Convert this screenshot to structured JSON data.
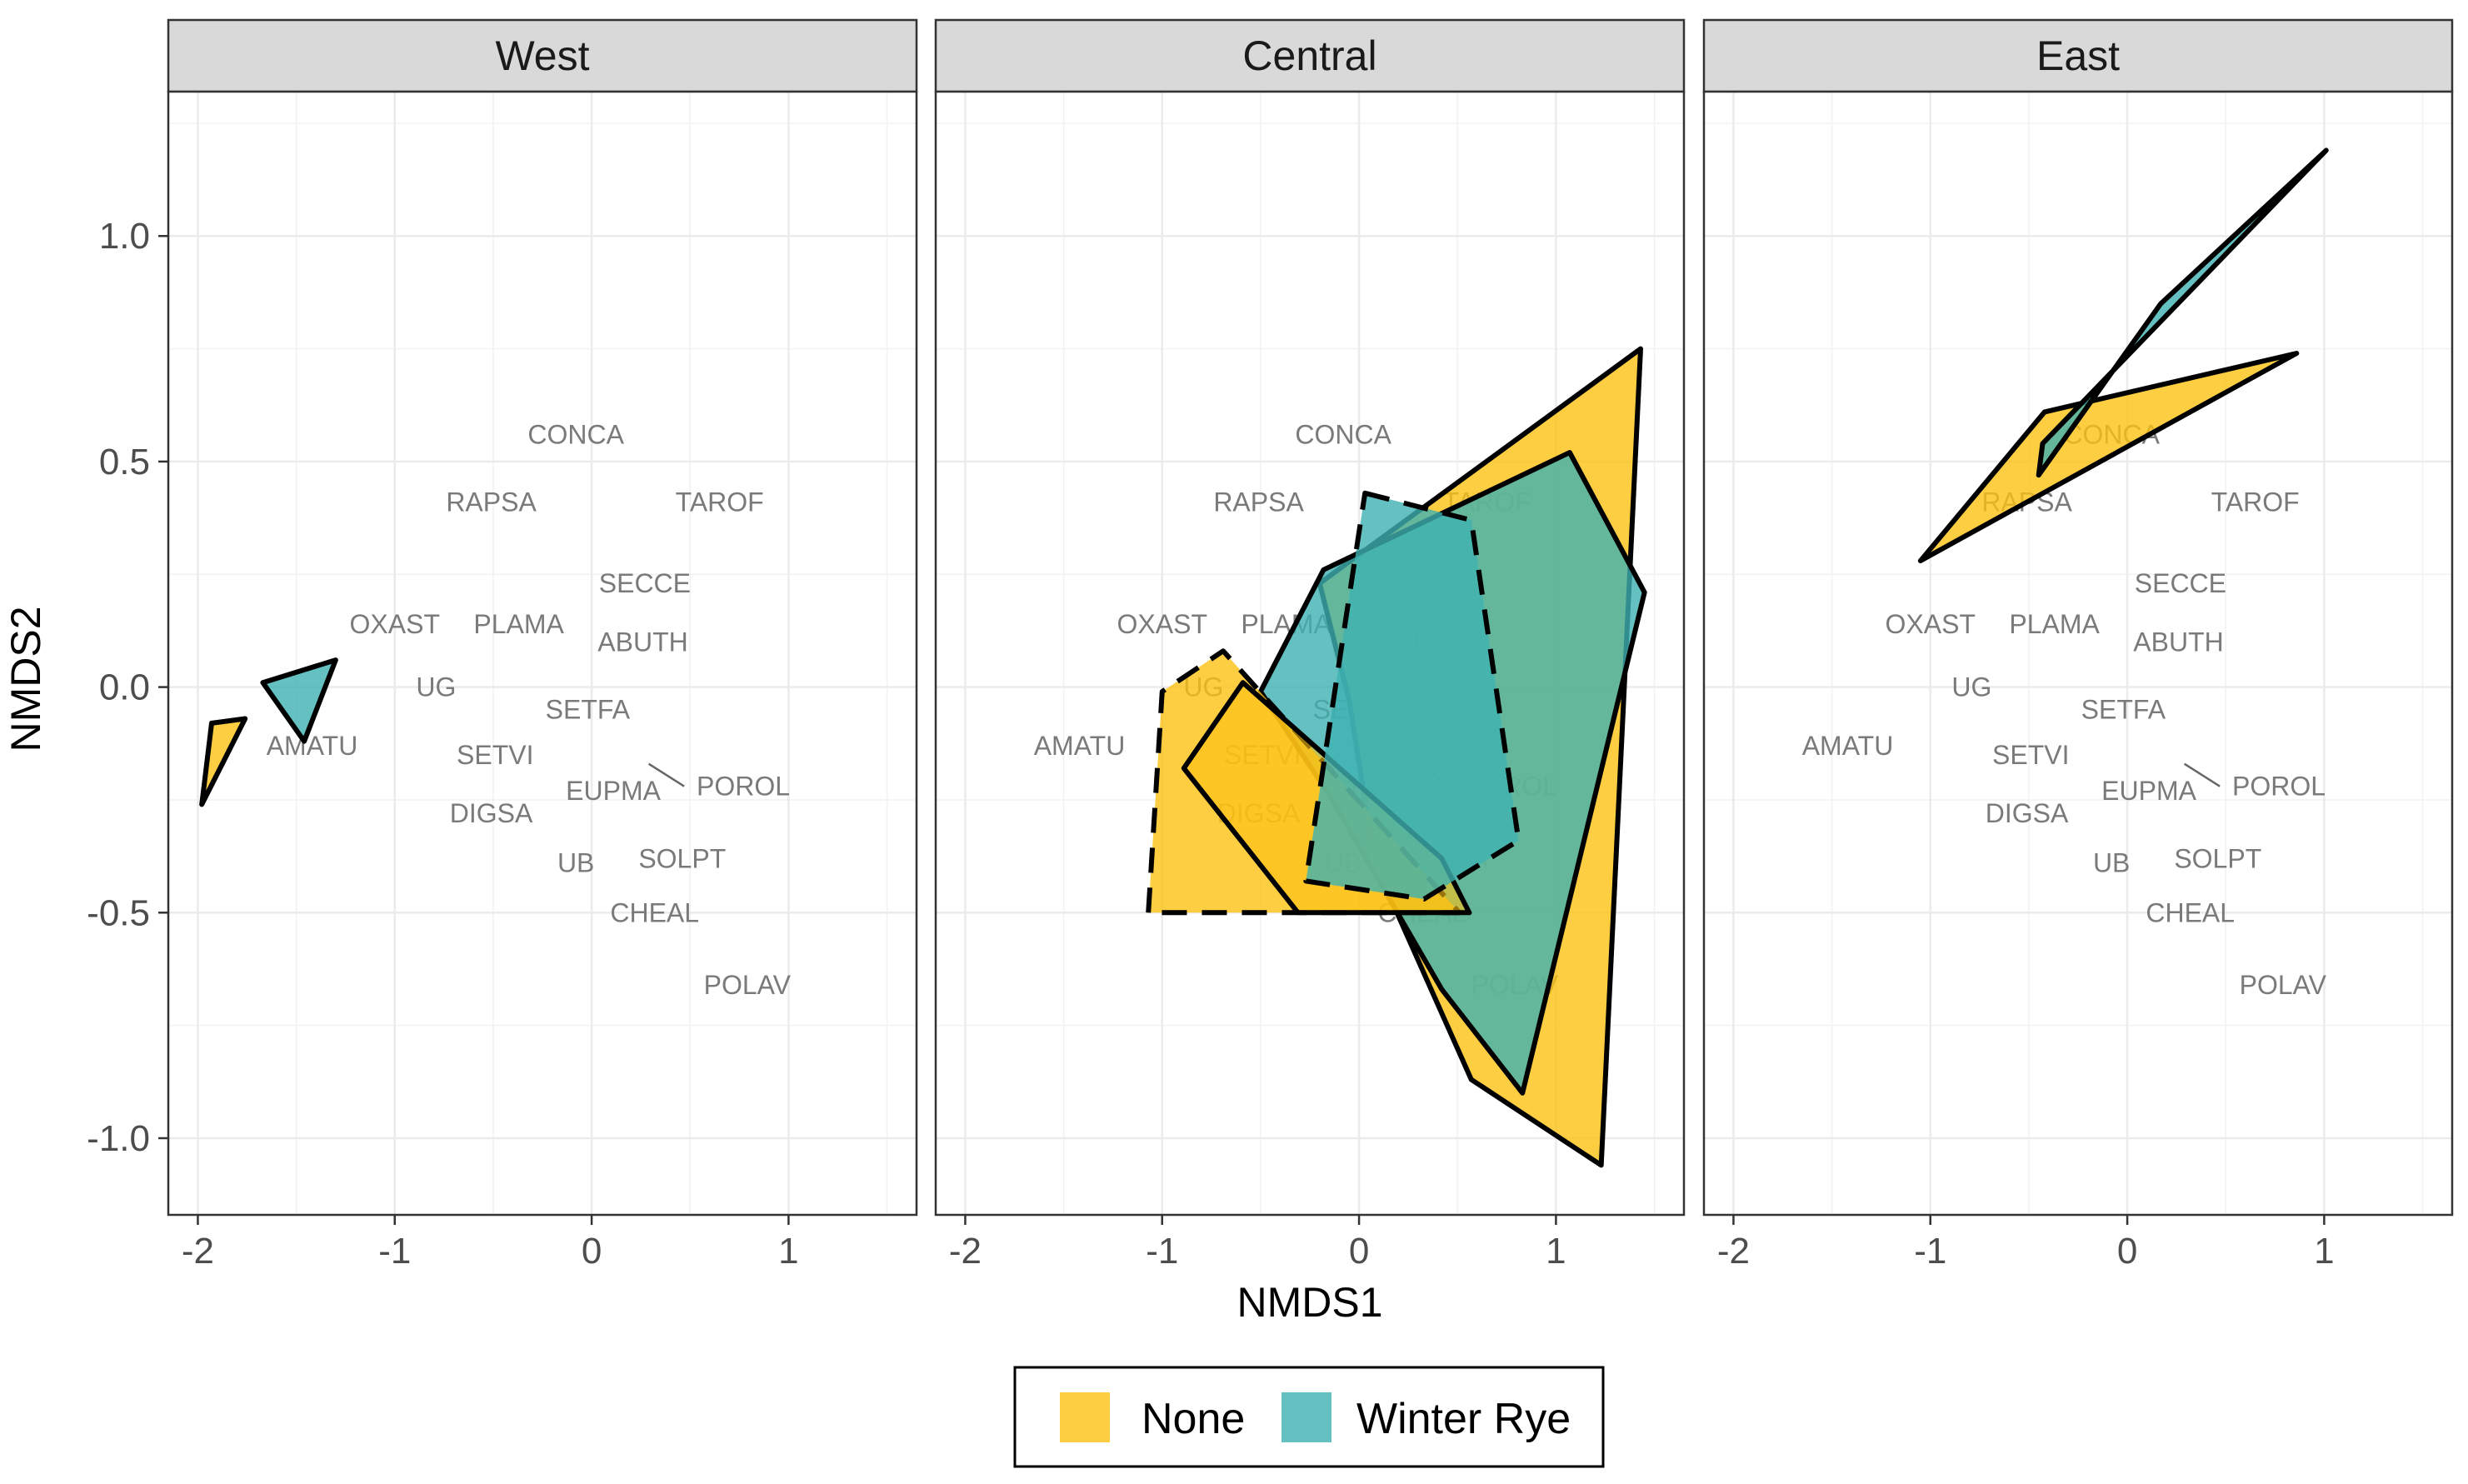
{
  "chart_data": {
    "type": "scatter",
    "subtype": "nmds_ordination_hulls",
    "xlabel": "NMDS1",
    "ylabel": "NMDS2",
    "xlim": [
      -2.15,
      1.65
    ],
    "ylim": [
      -1.17,
      1.32
    ],
    "x_ticks": [
      -2,
      -1,
      0,
      1
    ],
    "x_tick_labels": [
      "-2",
      "-1",
      "0",
      "1"
    ],
    "y_ticks": [
      -1.0,
      -0.5,
      0.0,
      0.5,
      1.0
    ],
    "y_tick_labels": [
      "-1.0",
      "-0.5",
      "0.0",
      "0.5",
      "1.0"
    ],
    "grid": true,
    "legend_position": "bottom",
    "legend": [
      {
        "label": "None",
        "color": "#FDC113"
      },
      {
        "label": "Winter Rye",
        "color": "#3FB1B2"
      }
    ],
    "species": [
      {
        "label": "CONCA",
        "x": -0.08,
        "y": 0.56
      },
      {
        "label": "RAPSA",
        "x": -0.51,
        "y": 0.41
      },
      {
        "label": "TAROF",
        "x": 0.65,
        "y": 0.41
      },
      {
        "label": "SECCE",
        "x": 0.27,
        "y": 0.23
      },
      {
        "label": "OXAST",
        "x": -1.0,
        "y": 0.14
      },
      {
        "label": "PLAMA",
        "x": -0.37,
        "y": 0.14
      },
      {
        "label": "ABUTH",
        "x": 0.26,
        "y": 0.1
      },
      {
        "label": "UG",
        "x": -0.79,
        "y": 0.0
      },
      {
        "label": "SETFA",
        "x": -0.02,
        "y": -0.05
      },
      {
        "label": "AMATU",
        "x": -1.42,
        "y": -0.13
      },
      {
        "label": "SETVI",
        "x": -0.49,
        "y": -0.15
      },
      {
        "label": "EUPMA",
        "x": 0.11,
        "y": -0.23
      },
      {
        "label": "POROL",
        "x": 0.77,
        "y": -0.22
      },
      {
        "label": "DIGSA",
        "x": -0.51,
        "y": -0.28
      },
      {
        "label": "SOLPT",
        "x": 0.46,
        "y": -0.38
      },
      {
        "label": "UB",
        "x": -0.08,
        "y": -0.39
      },
      {
        "label": "CHEAL",
        "x": 0.32,
        "y": -0.5
      },
      {
        "label": "POLAV",
        "x": 0.79,
        "y": -0.66
      }
    ],
    "segments": [
      {
        "x1": 0.29,
        "y1": -0.17,
        "x2": 0.47,
        "y2": -0.22
      }
    ],
    "panels": [
      {
        "title": "West",
        "hulls": [
          {
            "group": "None",
            "color": "#FDC113",
            "dashed": false,
            "points": [
              [
                -1.98,
                -0.26
              ],
              [
                -1.93,
                -0.08
              ],
              [
                -1.76,
                -0.07
              ]
            ]
          },
          {
            "group": "Winter Rye",
            "color": "#3FB1B2",
            "dashed": false,
            "points": [
              [
                -1.67,
                0.01
              ],
              [
                -1.3,
                0.06
              ],
              [
                -1.46,
                -0.12
              ]
            ]
          }
        ]
      },
      {
        "title": "Central",
        "hulls": [
          {
            "group": "None",
            "color": "#FDC113",
            "dashed": false,
            "points": [
              [
                -0.2,
                0.23
              ],
              [
                1.43,
                0.75
              ],
              [
                1.23,
                -1.06
              ],
              [
                0.57,
                -0.87
              ],
              [
                0.08,
                -0.39
              ],
              [
                -0.05,
                -0.03
              ]
            ]
          },
          {
            "group": "Winter Rye",
            "color": "#3FB1B2",
            "dashed": false,
            "points": [
              [
                -0.5,
                -0.01
              ],
              [
                -0.18,
                0.26
              ],
              [
                1.07,
                0.52
              ],
              [
                1.45,
                0.21
              ],
              [
                0.83,
                -0.9
              ],
              [
                0.42,
                -0.67
              ],
              [
                -0.15,
                -0.24
              ]
            ]
          },
          {
            "group": "None",
            "color": "#FDC113",
            "dashed": true,
            "points": [
              [
                -1.07,
                -0.5
              ],
              [
                -1.0,
                -0.01
              ],
              [
                -0.69,
                0.08
              ],
              [
                0.51,
                -0.5
              ]
            ]
          },
          {
            "group": "None",
            "color": "#FDC113",
            "dashed": false,
            "alpha": 0.6,
            "points": [
              [
                -0.89,
                -0.18
              ],
              [
                -0.59,
                0.01
              ],
              [
                0.42,
                -0.38
              ],
              [
                0.56,
                -0.5
              ],
              [
                -0.31,
                -0.5
              ]
            ]
          },
          {
            "group": "Winter Rye",
            "color": "#3FB1B2",
            "dashed": true,
            "points": [
              [
                0.03,
                0.43
              ],
              [
                0.57,
                0.37
              ],
              [
                0.81,
                -0.34
              ],
              [
                0.33,
                -0.47
              ],
              [
                -0.27,
                -0.43
              ]
            ]
          }
        ]
      },
      {
        "title": "East",
        "hulls": [
          {
            "group": "None",
            "color": "#FDC113",
            "dashed": false,
            "points": [
              [
                -1.05,
                0.28
              ],
              [
                -0.42,
                0.61
              ],
              [
                0.86,
                0.74
              ]
            ]
          },
          {
            "group": "Winter Rye",
            "color": "#3FB1B2",
            "dashed": false,
            "points": [
              [
                -0.45,
                0.47
              ],
              [
                0.17,
                0.85
              ],
              [
                1.01,
                1.19
              ],
              [
                -0.43,
                0.54
              ]
            ]
          }
        ]
      }
    ]
  }
}
